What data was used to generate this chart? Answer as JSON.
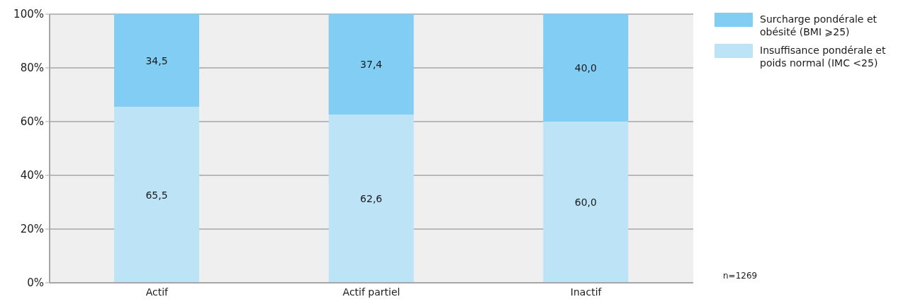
{
  "chart_data": {
    "type": "bar",
    "stacked": true,
    "categories": [
      "Actif",
      "Actif partiel",
      "Inactif"
    ],
    "series": [
      {
        "name": "Insuffisance pondérale et poids normal (IMC <25)",
        "color": "#bde3f7",
        "values": [
          65.5,
          62.6,
          60.0
        ],
        "value_labels": [
          "65,5",
          "62,6",
          "60,0"
        ]
      },
      {
        "name": "Surcharge pondérale et obésité (BMI ⩾25)",
        "color": "#82cdf3",
        "values": [
          34.5,
          37.4,
          40.0
        ],
        "value_labels": [
          "34,5",
          "37,4",
          "40,0"
        ]
      }
    ],
    "ylim": [
      0,
      100
    ],
    "yticks": [
      {
        "value": 0,
        "label": "0%"
      },
      {
        "value": 20,
        "label": "20%"
      },
      {
        "value": 40,
        "label": "40%"
      },
      {
        "value": 60,
        "label": "60%"
      },
      {
        "value": 80,
        "label": "80%"
      },
      {
        "value": 100,
        "label": "100%"
      }
    ],
    "grid": "y",
    "legend": "top right",
    "annotations": [
      "n=1269"
    ]
  }
}
